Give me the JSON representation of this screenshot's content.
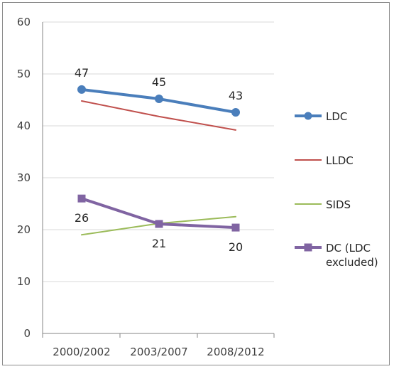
{
  "chart_data": {
    "type": "line",
    "categories": [
      "2000/2002",
      "2003/2007",
      "2008/2012"
    ],
    "ylim": [
      0,
      60
    ],
    "yticks": [
      0,
      10,
      20,
      30,
      40,
      50,
      60
    ],
    "grid": true,
    "legend_position": "right",
    "series": [
      {
        "name": "LDC",
        "values": [
          47,
          45.2,
          42.6
        ],
        "color": "#4a7ebb",
        "marker": "circle",
        "labels": [
          "47",
          "45",
          "43"
        ],
        "label_position": "above"
      },
      {
        "name": "LLDC",
        "values": [
          44.8,
          41.8,
          39.2
        ],
        "color": "#c0504d",
        "marker": "none"
      },
      {
        "name": "SIDS",
        "values": [
          19,
          21.2,
          22.5
        ],
        "color": "#9bbb59",
        "marker": "none"
      },
      {
        "name": "DC (LDC excluded)",
        "legend_lines": [
          "DC (LDC",
          "excluded)"
        ],
        "values": [
          26,
          21.1,
          20.4
        ],
        "color": "#8064a2",
        "marker": "square",
        "labels": [
          "26",
          "21",
          "20"
        ],
        "label_position": "below"
      }
    ]
  }
}
